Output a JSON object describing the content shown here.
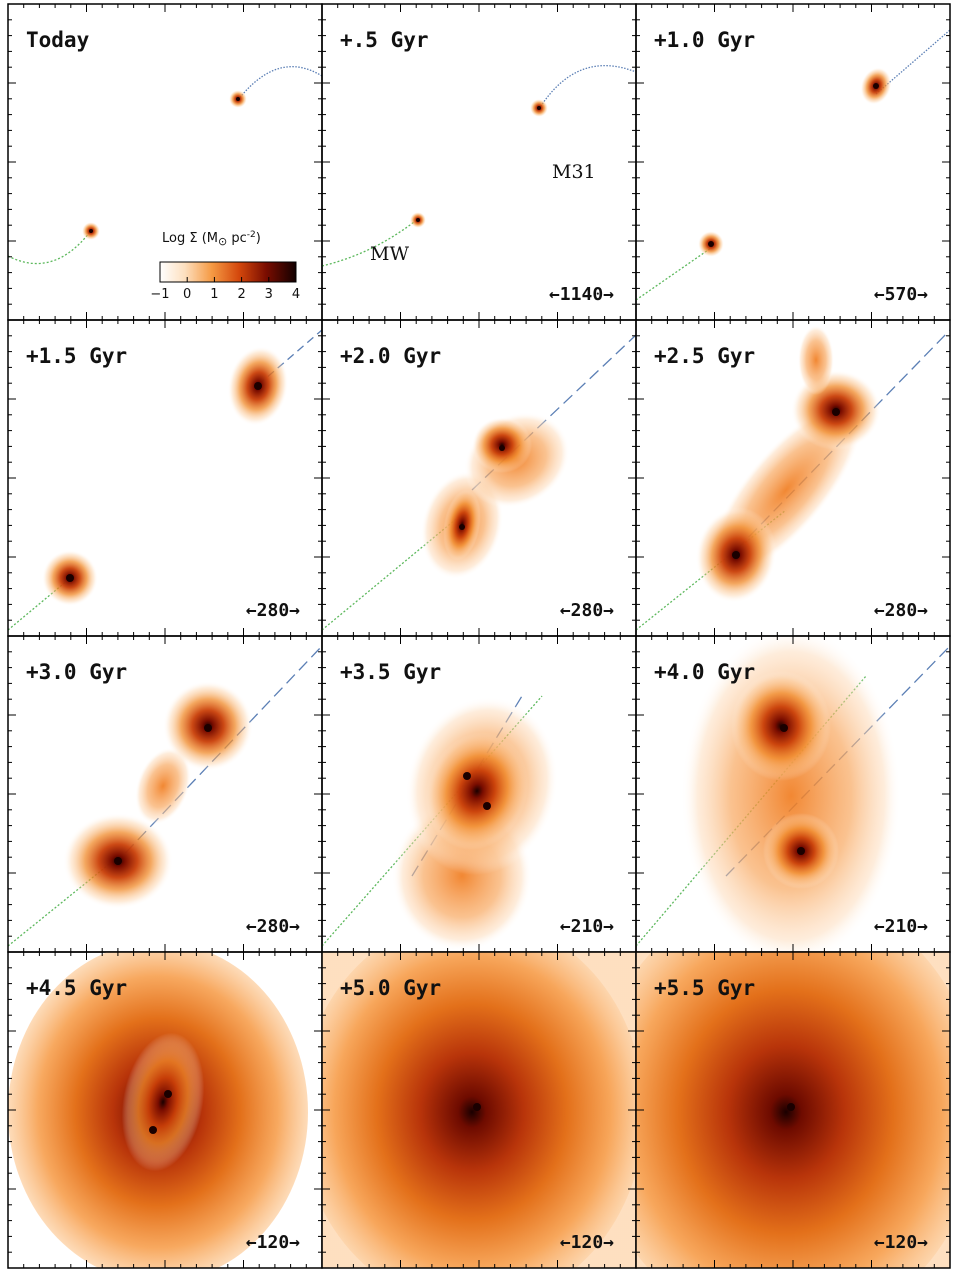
{
  "panels": [
    {
      "label": "Today",
      "scale": ""
    },
    {
      "label": "+.5 Gyr",
      "scale": "←1140→"
    },
    {
      "label": "+1.0 Gyr",
      "scale": "←570→"
    },
    {
      "label": "+1.5 Gyr",
      "scale": "←280→"
    },
    {
      "label": "+2.0 Gyr",
      "scale": "←280→"
    },
    {
      "label": "+2.5 Gyr",
      "scale": "←280→"
    },
    {
      "label": "+3.0 Gyr",
      "scale": "←280→"
    },
    {
      "label": "+3.5 Gyr",
      "scale": "←210→"
    },
    {
      "label": "+4.0 Gyr",
      "scale": "←210→"
    },
    {
      "label": "+4.5 Gyr",
      "scale": "←120→"
    },
    {
      "label": "+5.0 Gyr",
      "scale": "←120→"
    },
    {
      "label": "+5.5 Gyr",
      "scale": "←120→"
    }
  ],
  "annotations": {
    "m31": "M31",
    "mw": "MW"
  },
  "colorbar": {
    "title": "Log Σ (M",
    "title_sun": "⊙",
    "title_unit": " pc",
    "title_exp": "-2",
    "title_close": ")",
    "ticks": [
      "−1",
      "0",
      "1",
      "2",
      "3",
      "4"
    ],
    "range": [
      -1,
      4
    ]
  },
  "colors": {
    "m31_track": "#5b7fb5",
    "mw_track": "#5cb85c",
    "density_low": "#fde4c8",
    "density_mid": "#ef7a1a",
    "density_high": "#7a0d00",
    "density_peak": "#1a0000"
  }
}
